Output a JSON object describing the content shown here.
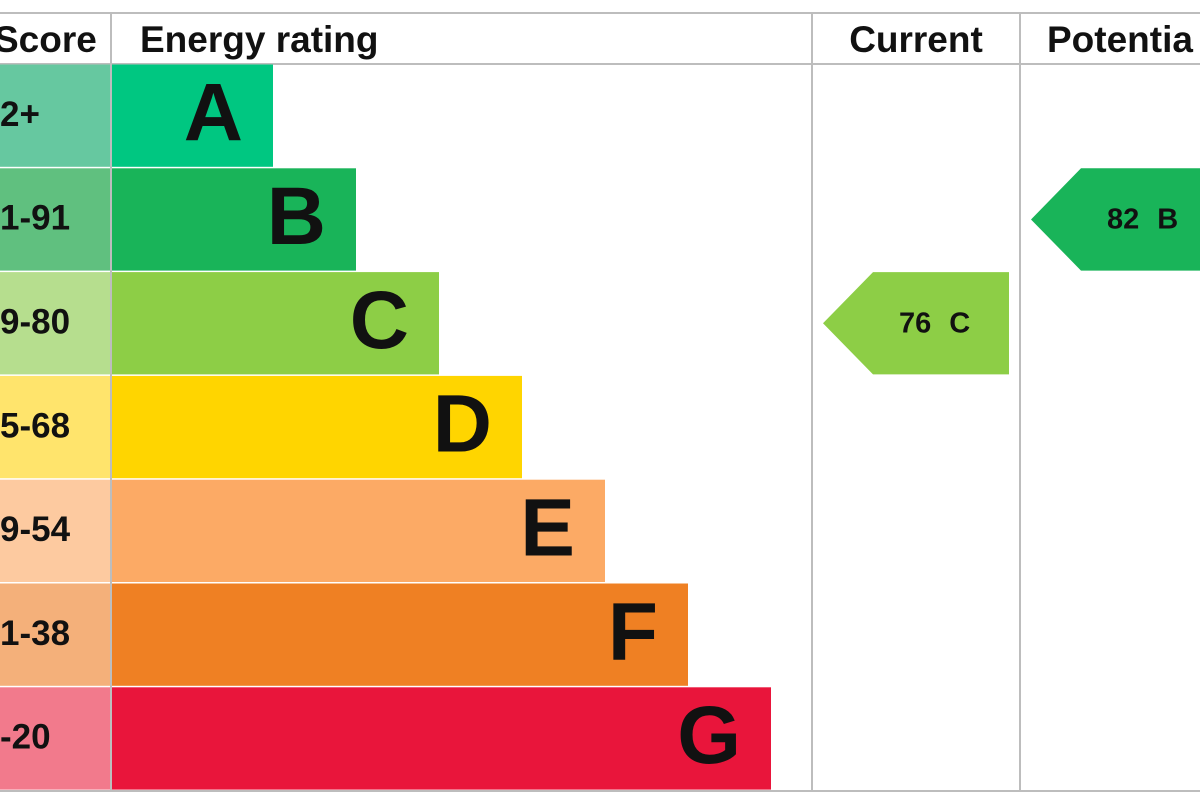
{
  "header": {
    "score": "Score",
    "rating": "Energy rating",
    "current": "Current",
    "potential": "Potentia"
  },
  "bands": [
    {
      "score": "2+",
      "letter": "A",
      "color": "#00c781",
      "score_color": "#66c8a0"
    },
    {
      "score": "1-91",
      "letter": "B",
      "color": "#19b459",
      "score_color": "#60c07f"
    },
    {
      "score": "9-80",
      "letter": "C",
      "color": "#8dce46",
      "score_color": "#b6de8e"
    },
    {
      "score": "5-68",
      "letter": "D",
      "color": "#ffd500",
      "score_color": "#ffe46c"
    },
    {
      "score": "9-54",
      "letter": "E",
      "color": "#fcaa65",
      "score_color": "#fdcaa0"
    },
    {
      "score": "1-38",
      "letter": "F",
      "color": "#ef8023",
      "score_color": "#f4b07a"
    },
    {
      "score": "-20",
      "letter": "G",
      "color": "#e9153b",
      "score_color": "#f27a8c"
    }
  ],
  "current": {
    "value": 76,
    "band": "C"
  },
  "potential": {
    "value": 82,
    "band": "B"
  }
}
